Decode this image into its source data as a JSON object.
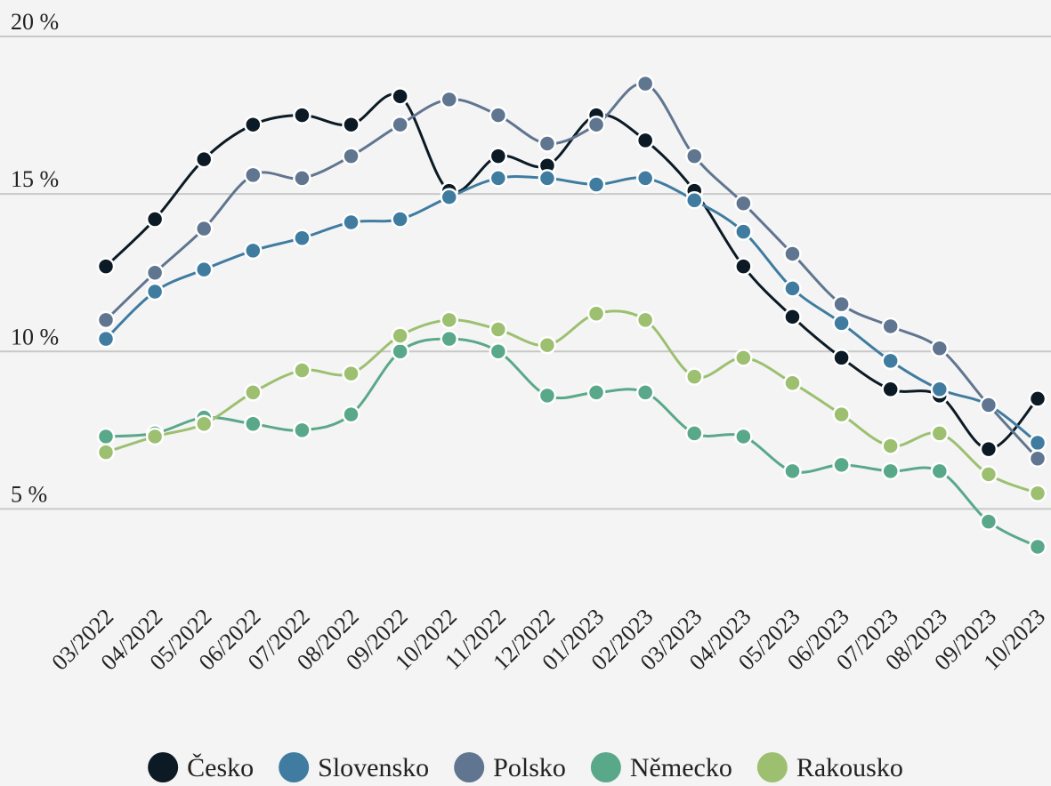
{
  "chart_data": {
    "type": "line",
    "categories": [
      "03/2022",
      "04/2022",
      "05/2022",
      "06/2022",
      "07/2022",
      "08/2022",
      "09/2022",
      "10/2022",
      "11/2022",
      "12/2022",
      "01/2023",
      "02/2023",
      "03/2023",
      "04/2023",
      "05/2023",
      "06/2023",
      "07/2023",
      "08/2023",
      "09/2023",
      "10/2023"
    ],
    "series": [
      {
        "name": "Česko",
        "color": "#0b1a24",
        "values": [
          12.7,
          14.2,
          16.1,
          17.2,
          17.5,
          17.2,
          18.1,
          15.1,
          16.2,
          15.9,
          17.5,
          16.7,
          15.1,
          12.7,
          11.1,
          9.8,
          8.8,
          8.6,
          6.9,
          8.5
        ]
      },
      {
        "name": "Slovensko",
        "color": "#3f7ca0",
        "values": [
          10.4,
          11.9,
          12.6,
          13.2,
          13.6,
          14.1,
          14.2,
          14.9,
          15.5,
          15.5,
          15.3,
          15.5,
          14.8,
          13.8,
          12.0,
          10.9,
          9.7,
          8.8,
          8.3,
          7.1
        ]
      },
      {
        "name": "Polsko",
        "color": "#60758f",
        "values": [
          11.0,
          12.5,
          13.9,
          15.6,
          15.5,
          16.2,
          17.2,
          18.0,
          17.5,
          16.6,
          17.2,
          18.5,
          16.2,
          14.7,
          13.1,
          11.5,
          10.8,
          10.1,
          8.3,
          6.6
        ]
      },
      {
        "name": "Německo",
        "color": "#5aa88a",
        "values": [
          7.3,
          7.4,
          7.9,
          7.7,
          7.5,
          8.0,
          10.0,
          10.4,
          10.0,
          8.6,
          8.7,
          8.7,
          7.4,
          7.3,
          6.2,
          6.4,
          6.2,
          6.2,
          4.6,
          3.8
        ]
      },
      {
        "name": "Rakousko",
        "color": "#9cc070",
        "values": [
          6.8,
          7.3,
          7.7,
          8.7,
          9.4,
          9.3,
          10.5,
          11.0,
          10.7,
          10.2,
          11.2,
          11.0,
          9.2,
          9.8,
          9.0,
          8.0,
          7.0,
          7.4,
          6.1,
          5.5
        ]
      }
    ],
    "ylim": [
      2.5,
      20
    ],
    "yticks": [
      {
        "value": 5,
        "label": "5 %"
      },
      {
        "value": 10,
        "label": "10 %"
      },
      {
        "value": 15,
        "label": "15 %"
      },
      {
        "value": 20,
        "label": "20 %"
      }
    ],
    "grid": true
  }
}
